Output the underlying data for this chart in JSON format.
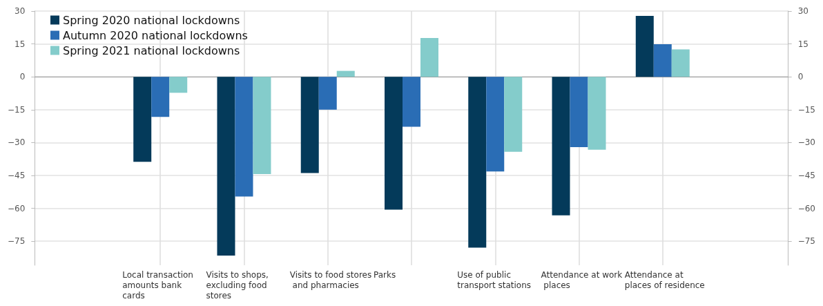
{
  "chart_data": {
    "type": "bar",
    "categories": [
      null,
      "Local transaction amounts bank cards",
      "Visits to shops, excluding food stores",
      "Visits to food stores and pharmacies",
      "Parks",
      "Use of public transport stations",
      "Attendance at work places",
      "Attendance at places of residence",
      null
    ],
    "series": [
      {
        "name": "Spring 2020 national lockdowns",
        "color": "#043a5a",
        "values": [
          null,
          -38.8,
          -81.6,
          -43.9,
          -60.6,
          -78,
          -63.2,
          27.8,
          null
        ]
      },
      {
        "name": "Autumn 2020 national lockdowns",
        "color": "#2a6db5",
        "values": [
          null,
          -18.3,
          -54.6,
          -15,
          -22.8,
          -43.2,
          -32.1,
          14.9,
          null
        ]
      },
      {
        "name": "Spring 2021 national lockdowns",
        "color": "#84cccb",
        "values": [
          null,
          -7.3,
          -44.4,
          2.7,
          17.7,
          -34.2,
          -33.3,
          12.5,
          null
        ]
      }
    ],
    "ylim": [
      -86,
      30
    ],
    "yticks": [
      30,
      15,
      0,
      -15,
      -30,
      -45,
      -60,
      -75
    ],
    "y2lim": [
      -86,
      30
    ],
    "y2ticks": [
      30,
      15,
      0,
      -15,
      -30,
      -45,
      -60,
      -75
    ],
    "grid": true,
    "legend": "top left"
  }
}
